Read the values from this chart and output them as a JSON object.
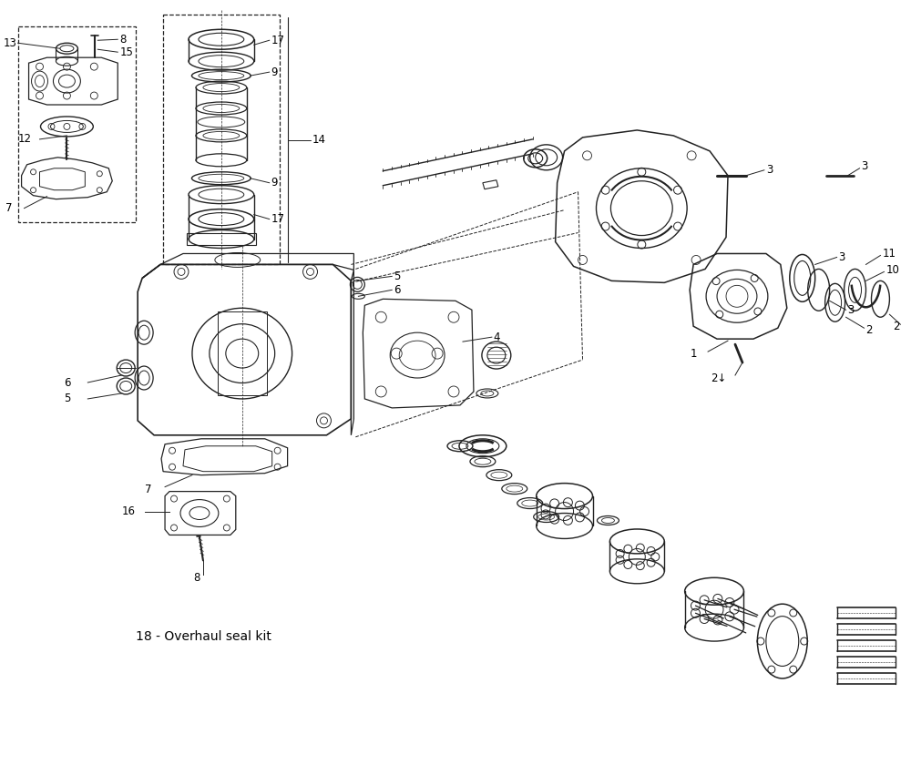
{
  "background_color": "#ffffff",
  "line_color": "#222222",
  "text_color": "#000000",
  "figure_width": 10.0,
  "figure_height": 8.4,
  "dpi": 100,
  "annotation_fontsize": 8.5,
  "note_text": "18 - Overhaul seal kit",
  "note_fontsize": 10
}
